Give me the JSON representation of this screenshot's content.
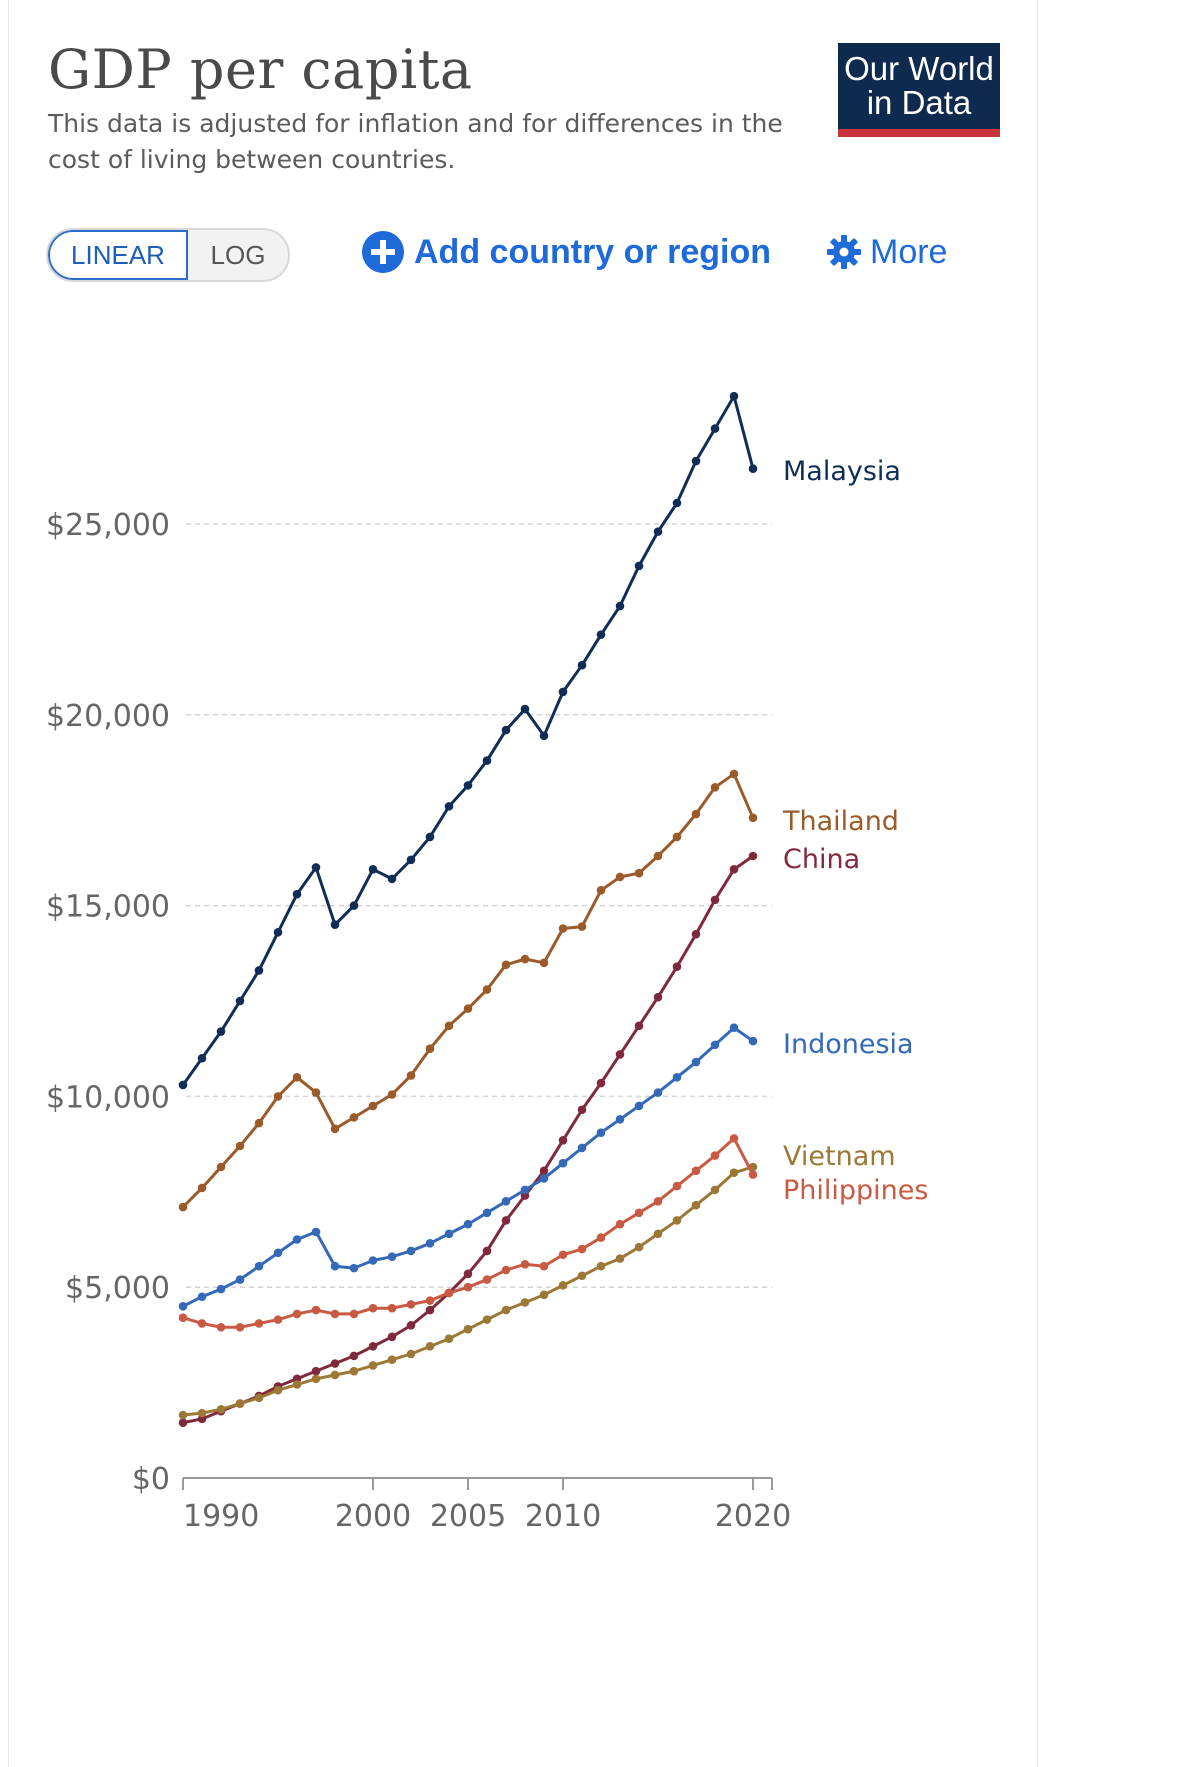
{
  "header": {
    "title": "GDP per capita",
    "subtitle": "This data is adjusted for inflation and for differences in the cost of living between countries.",
    "logo_line1": "Our World",
    "logo_line2": "in Data"
  },
  "controls": {
    "linear_label": "LINEAR",
    "log_label": "LOG",
    "add_label": "Add country or region",
    "more_label": "More"
  },
  "colors": {
    "accent": "#1d6ad8",
    "logo_bg": "#0f2a4f",
    "logo_bar": "#c8323a"
  },
  "chart_data": {
    "type": "line",
    "x": [
      1990,
      1991,
      1992,
      1993,
      1994,
      1995,
      1996,
      1997,
      1998,
      1999,
      2000,
      2001,
      2002,
      2003,
      2004,
      2005,
      2006,
      2007,
      2008,
      2009,
      2010,
      2011,
      2012,
      2013,
      2014,
      2015,
      2016,
      2017,
      2018,
      2019,
      2020,
      2021
    ],
    "xticks": [
      1990,
      2000,
      2005,
      2010,
      2020
    ],
    "xtick_labels": [
      "1990",
      "2000",
      "2005",
      "2010",
      "2020"
    ],
    "yticks": [
      0,
      5000,
      10000,
      15000,
      20000,
      25000
    ],
    "ytick_labels": [
      "$0",
      "$5,000",
      "$10,000",
      "$15,000",
      "$20,000",
      "$25,000"
    ],
    "xlim": [
      1990,
      2021
    ],
    "ylim": [
      0,
      30000
    ],
    "grid": "horizontal-dashed",
    "legend": "end-of-line labels",
    "series": [
      {
        "name": "Malaysia",
        "color": "#102d56",
        "values": [
          10300,
          11000,
          11700,
          12500,
          13300,
          14300,
          15300,
          16000,
          14500,
          15000,
          15950,
          15700,
          16200,
          16800,
          17600,
          18150,
          18800,
          19600,
          20150,
          19450,
          20600,
          21300,
          22100,
          22850,
          23900,
          24800,
          25550,
          26650,
          27500,
          28350,
          26450,
          null
        ]
      },
      {
        "name": "Thailand",
        "color": "#9a5a2a",
        "values": [
          7100,
          7600,
          8150,
          8700,
          9300,
          10000,
          10500,
          10100,
          9150,
          9450,
          9750,
          10050,
          10550,
          11250,
          11850,
          12300,
          12800,
          13450,
          13600,
          13500,
          14400,
          14450,
          15400,
          15750,
          15850,
          16300,
          16800,
          17400,
          18100,
          18450,
          17300,
          null
        ]
      },
      {
        "name": "China",
        "color": "#7f2a3c",
        "values": [
          1450,
          1550,
          1750,
          1950,
          2150,
          2400,
          2600,
          2800,
          3000,
          3200,
          3450,
          3700,
          4000,
          4400,
          4850,
          5350,
          5950,
          6750,
          7400,
          8050,
          8850,
          9650,
          10350,
          11100,
          11850,
          12600,
          13400,
          14250,
          15150,
          15950,
          16300,
          null
        ]
      },
      {
        "name": "Indonesia",
        "color": "#3469b8",
        "values": [
          4500,
          4750,
          4950,
          5200,
          5550,
          5900,
          6250,
          6450,
          5550,
          5500,
          5700,
          5800,
          5950,
          6150,
          6400,
          6650,
          6950,
          7250,
          7550,
          7850,
          8250,
          8650,
          9050,
          9400,
          9750,
          10100,
          10500,
          10900,
          11350,
          11800,
          11450,
          null
        ]
      },
      {
        "name": "Vietnam",
        "color": "#9b7836",
        "values": [
          1650,
          1700,
          1800,
          1950,
          2100,
          2300,
          2450,
          2600,
          2700,
          2800,
          2950,
          3100,
          3250,
          3450,
          3650,
          3900,
          4150,
          4400,
          4600,
          4800,
          5050,
          5300,
          5550,
          5750,
          6050,
          6400,
          6750,
          7150,
          7550,
          8000,
          8150,
          null
        ]
      },
      {
        "name": "Philippines",
        "color": "#c85a43",
        "values": [
          4200,
          4050,
          3950,
          3950,
          4050,
          4150,
          4300,
          4400,
          4300,
          4300,
          4450,
          4450,
          4550,
          4650,
          4850,
          5000,
          5200,
          5450,
          5600,
          5550,
          5850,
          6000,
          6300,
          6650,
          6950,
          7250,
          7650,
          8050,
          8450,
          8900,
          7950,
          null
        ]
      }
    ]
  }
}
